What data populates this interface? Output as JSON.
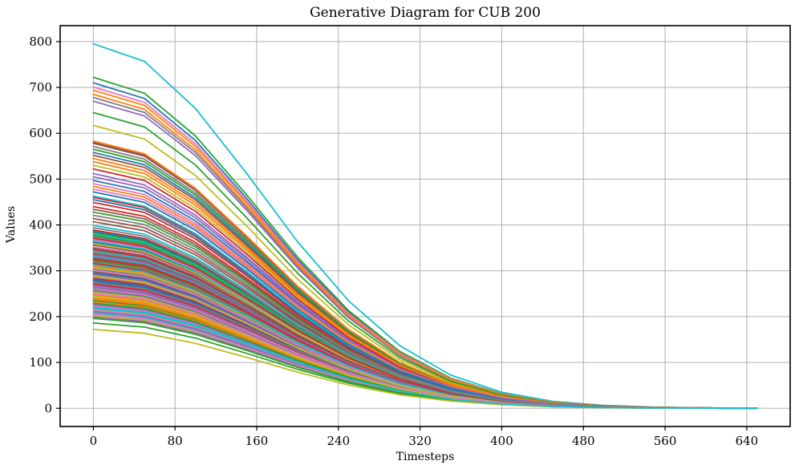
{
  "chart_data": {
    "type": "line",
    "title": "Generative Diagram for CUB 200",
    "xlabel": "Timesteps",
    "ylabel": "Values",
    "grid": true,
    "legend": "none",
    "num_series": 110,
    "x": [
      0,
      50,
      100,
      150,
      200,
      250,
      300,
      350,
      400,
      450,
      500,
      550,
      600,
      650
    ],
    "xlim": [
      -32.5,
      682.5
    ],
    "ylim": [
      -39.75,
      834.75
    ],
    "xticks": [
      0,
      80,
      160,
      240,
      320,
      400,
      480,
      560,
      640
    ],
    "yticks": [
      0,
      100,
      200,
      300,
      400,
      500,
      600,
      700,
      800
    ],
    "decay_shape": [
      1.0,
      0.952,
      0.823,
      0.645,
      0.457,
      0.295,
      0.172,
      0.091,
      0.044,
      0.019,
      0.008,
      0.003,
      0.0012,
      0.0005
    ],
    "series_rule": "value_at_x[k] = start_value * decay_shape[k]",
    "series_start_values": [
      710,
      694,
      722,
      460,
      670,
      578,
      701,
      678,
      617,
      795,
      558,
      685,
      645,
      440,
      512,
      580,
      352,
      571,
      530,
      463,
      497,
      310,
      235,
      389,
      265,
      552,
      223,
      340,
      290,
      208,
      386,
      247,
      322,
      449,
      268,
      298,
      214,
      374,
      253,
      331,
      280,
      241,
      565,
      316,
      226,
      356,
      490,
      262,
      202,
      343,
      295,
      238,
      383,
      271,
      211,
      328,
      478,
      256,
      307,
      220,
      362,
      232,
      428,
      283,
      199,
      337,
      250,
      304,
      217,
      380,
      259,
      538,
      229,
      346,
      286,
      407,
      205,
      319,
      244,
      365,
      277,
      484,
      196,
      325,
      292,
      434,
      301,
      274,
      359,
      313,
      472,
      583,
      377,
      522,
      334,
      414,
      368,
      421,
      288,
      399,
      455,
      545,
      186,
      371,
      505,
      349,
      260,
      394,
      172,
      218
    ],
    "palette": [
      "#1f77b4",
      "#ff7f0e",
      "#2ca02c",
      "#d62728",
      "#9467bd",
      "#8c564b",
      "#e377c2",
      "#7f7f7f",
      "#bcbd22",
      "#17becf"
    ]
  },
  "style_colors": {
    "grid": "#b0b0b0",
    "spine": "#000000",
    "tick_label": "#000000",
    "background": "#ffffff"
  }
}
